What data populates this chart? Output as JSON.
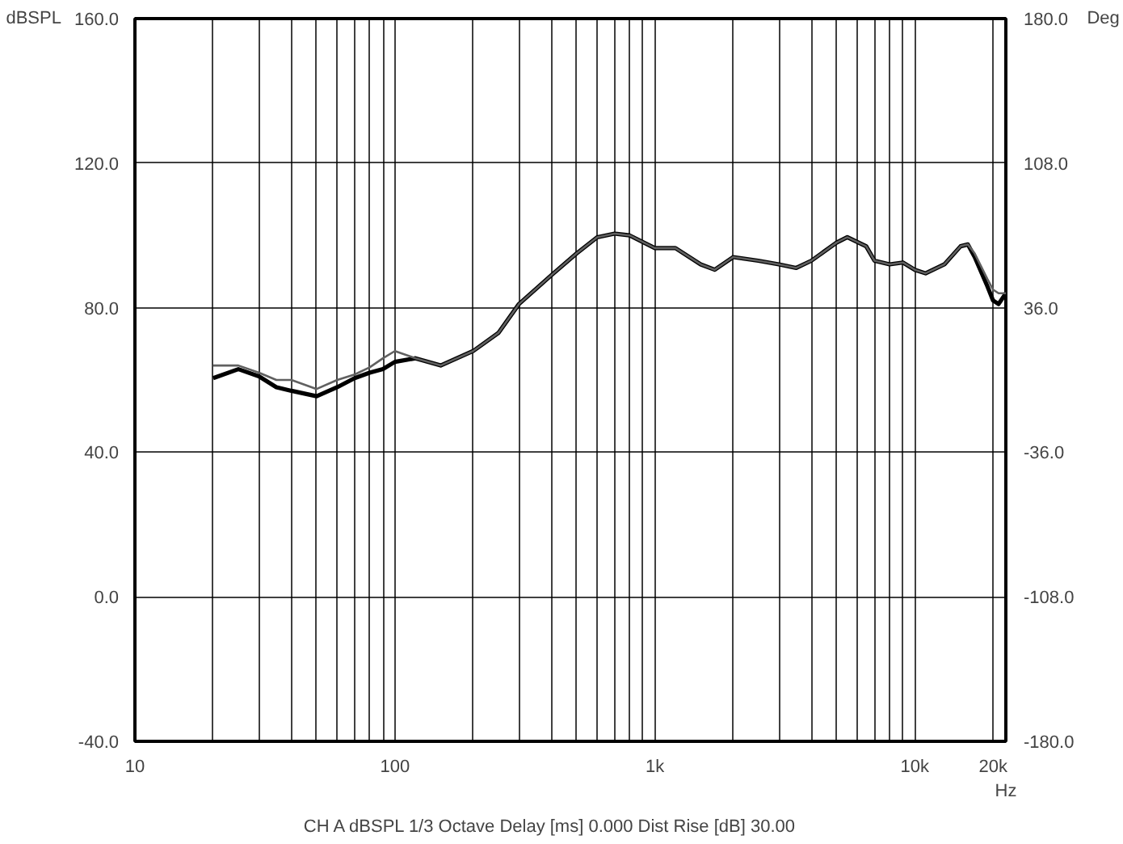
{
  "chart_data": {
    "type": "line",
    "xlabel": "Hz",
    "ylabel": "dBSPL",
    "y2label": "Deg",
    "annotations": [
      "CH A   dBSPL   1/3 Octave   Delay [ms] 0.000   Dist Rise [dB] 30.00"
    ],
    "log": "x",
    "grid": true,
    "marker": "none",
    "line_style": "solid",
    "xlim": [
      10,
      22400
    ],
    "ylim": [
      -40,
      160
    ],
    "y2lim": [
      -180,
      180
    ],
    "xticks": [
      {
        "value": 10,
        "label": "10"
      },
      {
        "value": 20,
        "label": null
      },
      {
        "value": 30,
        "label": null
      },
      {
        "value": 40,
        "label": null
      },
      {
        "value": 50,
        "label": null
      },
      {
        "value": 60,
        "label": null
      },
      {
        "value": 70,
        "label": null
      },
      {
        "value": 80,
        "label": null
      },
      {
        "value": 90,
        "label": null
      },
      {
        "value": 100,
        "label": "100"
      },
      {
        "value": 200,
        "label": null
      },
      {
        "value": 300,
        "label": null
      },
      {
        "value": 400,
        "label": null
      },
      {
        "value": 500,
        "label": null
      },
      {
        "value": 600,
        "label": null
      },
      {
        "value": 700,
        "label": null
      },
      {
        "value": 800,
        "label": null
      },
      {
        "value": 900,
        "label": null
      },
      {
        "value": 1000,
        "label": "1k"
      },
      {
        "value": 2000,
        "label": null
      },
      {
        "value": 3000,
        "label": null
      },
      {
        "value": 4000,
        "label": null
      },
      {
        "value": 5000,
        "label": null
      },
      {
        "value": 6000,
        "label": null
      },
      {
        "value": 7000,
        "label": null
      },
      {
        "value": 8000,
        "label": null
      },
      {
        "value": 9000,
        "label": null
      },
      {
        "value": 10000,
        "label": "10k"
      },
      {
        "value": 20000,
        "label": "20k"
      }
    ],
    "yticks": [
      {
        "value": -40,
        "label": "-40.0"
      },
      {
        "value": 0,
        "label": "0.0"
      },
      {
        "value": 40,
        "label": "40.0"
      },
      {
        "value": 80,
        "label": "80.0"
      },
      {
        "value": 120,
        "label": "120.0"
      },
      {
        "value": 160,
        "label": "160.0"
      }
    ],
    "y2ticks": [
      {
        "value": -180,
        "label": "-180.0"
      },
      {
        "value": -108,
        "label": "-108.0"
      },
      {
        "value": -36,
        "label": "-36.0"
      },
      {
        "value": 36,
        "label": "36.0"
      },
      {
        "value": 108,
        "label": "108.0"
      },
      {
        "value": 180,
        "label": "180.0"
      }
    ],
    "x": [
      20,
      25,
      30,
      35,
      40,
      50,
      60,
      70,
      80,
      90,
      100,
      120,
      150,
      200,
      250,
      300,
      400,
      500,
      600,
      700,
      800,
      1000,
      1200,
      1500,
      1700,
      2000,
      2500,
      3000,
      3500,
      4000,
      5000,
      5500,
      6500,
      7000,
      8000,
      9000,
      10000,
      11000,
      13000,
      15000,
      16000,
      17000,
      19000,
      20000,
      21000,
      22400
    ],
    "series": [
      {
        "color": "#000000",
        "values": [
          60.5,
          63,
          61,
          58,
          57,
          55.5,
          58,
          60.5,
          62,
          63,
          65,
          66,
          64,
          68,
          73,
          81,
          89,
          95,
          99.5,
          100.5,
          100,
          96.5,
          96.5,
          92,
          90.5,
          94,
          93,
          92,
          91,
          93,
          98,
          99.5,
          97,
          93,
          92,
          92.5,
          90.5,
          89.5,
          92,
          97,
          97.5,
          94,
          86,
          82,
          81,
          84
        ]
      },
      {
        "color": "#606060",
        "values": [
          64,
          64,
          62,
          60,
          60,
          57.5,
          60,
          61.5,
          63.5,
          66,
          68,
          66,
          64,
          68,
          73,
          81,
          89,
          95,
          99.5,
          100.5,
          100,
          96.5,
          96.5,
          92,
          90.5,
          94,
          93,
          92,
          91,
          93,
          98,
          99.5,
          97,
          93,
          92,
          92.5,
          90.5,
          89.5,
          92,
          97,
          97.5,
          95,
          88,
          85,
          84,
          84
        ]
      }
    ]
  }
}
